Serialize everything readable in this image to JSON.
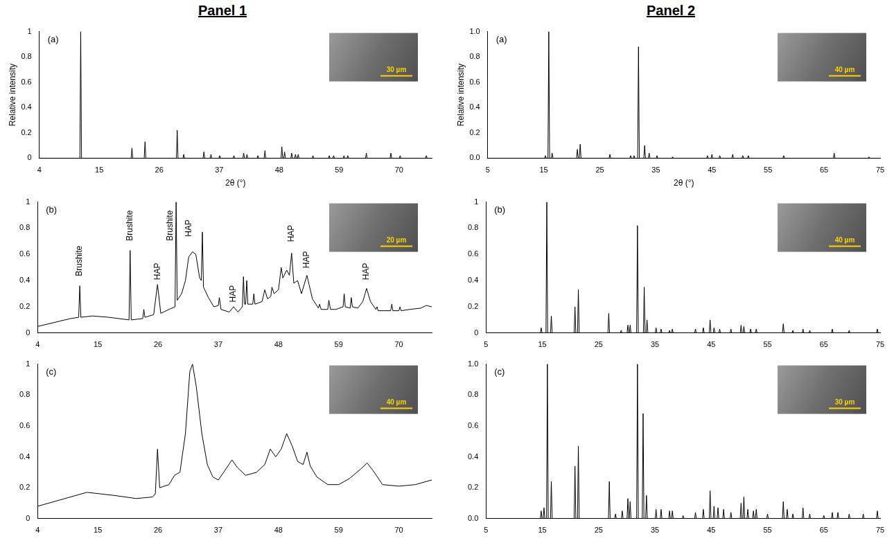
{
  "panel_titles": [
    "Panel 1",
    "Panel 2"
  ],
  "chart_data": [
    {
      "type": "line",
      "label": "(a)",
      "x_label": "2θ (°)",
      "y_label": "Relative intensity",
      "color": "#000000",
      "grid": false,
      "image_scale_bar": "30 µm",
      "xlim": [
        4,
        76
      ],
      "xticks": [
        4,
        15,
        26,
        37,
        48,
        59,
        70
      ],
      "ylim": [
        0,
        1
      ],
      "yticks": [
        0,
        0.2,
        0.4,
        0.6,
        0.8,
        1
      ],
      "x": [
        4,
        11.45,
        11.6,
        11.75,
        20.85,
        21,
        21.15,
        23.25,
        23.4,
        23.55,
        29.15,
        29.3,
        29.45,
        30.35,
        30.5,
        30.65,
        34.05,
        34.2,
        34.35,
        35.35,
        35.5,
        35.65,
        36.95,
        37.1,
        37.25,
        39.55,
        39.7,
        39.85,
        41.35,
        41.5,
        41.65,
        41.95,
        42.1,
        42.25,
        43.95,
        44.1,
        44.25,
        45.25,
        45.4,
        45.55,
        48.35,
        48.5,
        48.65,
        48.85,
        49,
        49.15,
        50.15,
        50.3,
        50.45,
        50.85,
        51,
        51.15,
        51.35,
        51.5,
        51.65,
        54.05,
        54.2,
        54.35,
        57.05,
        57.2,
        57.35,
        57.85,
        58,
        58.15,
        59.75,
        59.9,
        60.05,
        60.45,
        60.6,
        60.75,
        63.85,
        64,
        64.15,
        68.35,
        68.5,
        68.65,
        70.05,
        70.2,
        70.35,
        74.85,
        75,
        75.15,
        76
      ],
      "values": [
        0,
        0,
        1,
        0,
        0,
        0.08,
        0,
        0,
        0.13,
        0,
        0,
        0.22,
        0,
        0,
        0.03,
        0,
        0,
        0.05,
        0,
        0,
        0.03,
        0,
        0,
        0.02,
        0,
        0,
        0.02,
        0,
        0,
        0.04,
        0,
        0,
        0.03,
        0,
        0,
        0.02,
        0,
        0,
        0.06,
        0,
        0,
        0.09,
        0,
        0,
        0.05,
        0,
        0,
        0.04,
        0,
        0,
        0.03,
        0,
        0,
        0.03,
        0,
        0,
        0.02,
        0,
        0,
        0.02,
        0,
        0,
        0.02,
        0,
        0,
        0.02,
        0,
        0,
        0.02,
        0,
        0,
        0.04,
        0,
        0,
        0.04,
        0,
        0,
        0.02,
        0,
        0,
        0.02,
        0,
        0
      ]
    },
    {
      "type": "line",
      "label": "(b)",
      "color": "#000000",
      "grid": false,
      "image_scale_bar": "20 µm",
      "xlim": [
        4,
        76
      ],
      "xticks": [
        4,
        15,
        26,
        37,
        48,
        59,
        70
      ],
      "ylim": [
        0,
        1
      ],
      "yticks": [
        0,
        0.2,
        0.4,
        0.6,
        0.8,
        1
      ],
      "annotations": [
        {
          "text": "Brushite",
          "x": 11.7,
          "y": 0.55
        },
        {
          "text": "Brushite",
          "x": 20.9,
          "y": 0.82
        },
        {
          "text": "HAP",
          "x": 25.9,
          "y": 0.47
        },
        {
          "text": "Brushite",
          "x": 28.2,
          "y": 0.82
        },
        {
          "text": "HAP",
          "x": 31.6,
          "y": 0.8
        },
        {
          "text": "HAP",
          "x": 39.8,
          "y": 0.3
        },
        {
          "text": "HAP",
          "x": 50.4,
          "y": 0.76
        },
        {
          "text": "HAP",
          "x": 53.2,
          "y": 0.56
        },
        {
          "text": "HAP",
          "x": 64.1,
          "y": 0.47
        }
      ],
      "x": [
        4,
        6,
        8,
        10,
        11.5,
        11.7,
        11.9,
        14,
        17,
        20.7,
        20.9,
        21.1,
        23.2,
        23.4,
        23.6,
        25.2,
        25.9,
        26.5,
        28,
        29.1,
        29.3,
        29.5,
        30.3,
        31,
        31.6,
        32.3,
        32.9,
        33.6,
        33.9,
        34.1,
        34.3,
        35.2,
        36.2,
        37,
        37.2,
        37.5,
        39,
        39.8,
        40.6,
        41.4,
        41.6,
        41.8,
        42,
        42.2,
        42.4,
        43.3,
        43.5,
        43.7,
        45,
        45.5,
        46,
        46.6,
        46.8,
        47.2,
        48,
        48.5,
        48.8,
        49.5,
        50,
        50.4,
        50.8,
        51.5,
        52.2,
        53.2,
        54.2,
        55.3,
        55.5,
        55.8,
        57,
        57.2,
        57.5,
        58.5,
        59.8,
        60,
        60.2,
        61.1,
        61.3,
        61.5,
        62.5,
        63.4,
        64.1,
        64.8,
        65.8,
        66,
        66.2,
        68.5,
        68.7,
        68.9,
        70,
        70.2,
        70.4,
        72,
        74,
        75,
        76
      ],
      "values": [
        0.05,
        0.07,
        0.09,
        0.11,
        0.12,
        0.36,
        0.12,
        0.13,
        0.12,
        0.1,
        0.63,
        0.1,
        0.11,
        0.18,
        0.12,
        0.14,
        0.37,
        0.15,
        0.18,
        0.2,
        1,
        0.25,
        0.3,
        0.4,
        0.58,
        0.62,
        0.6,
        0.42,
        0.4,
        0.77,
        0.35,
        0.27,
        0.2,
        0.21,
        0.27,
        0.18,
        0.16,
        0.2,
        0.16,
        0.2,
        0.43,
        0.22,
        0.22,
        0.4,
        0.22,
        0.22,
        0.3,
        0.22,
        0.24,
        0.33,
        0.26,
        0.28,
        0.35,
        0.3,
        0.33,
        0.5,
        0.42,
        0.48,
        0.44,
        0.61,
        0.38,
        0.4,
        0.3,
        0.44,
        0.26,
        0.19,
        0.22,
        0.18,
        0.18,
        0.25,
        0.18,
        0.18,
        0.2,
        0.3,
        0.2,
        0.19,
        0.27,
        0.2,
        0.19,
        0.24,
        0.34,
        0.24,
        0.18,
        0.2,
        0.17,
        0.17,
        0.22,
        0.17,
        0.17,
        0.2,
        0.17,
        0.18,
        0.19,
        0.21,
        0.2
      ]
    },
    {
      "type": "line",
      "label": "(c)",
      "color": "#000000",
      "grid": false,
      "image_scale_bar": "40 µm",
      "xlim": [
        4,
        76
      ],
      "xticks": [
        4,
        15,
        26,
        37,
        48,
        59,
        70
      ],
      "ylim": [
        0,
        1
      ],
      "yticks": [
        0,
        0.2,
        0.4,
        0.6,
        0.8,
        1
      ],
      "x": [
        4,
        8,
        13,
        18,
        22,
        25,
        25.5,
        25.9,
        26.3,
        28,
        29,
        30,
        31,
        31.8,
        32.3,
        33,
        34,
        35,
        36,
        37,
        38,
        39.5,
        40.5,
        42,
        44,
        45.5,
        46.5,
        47.5,
        48.5,
        49.5,
        50.5,
        51.5,
        52.5,
        53.2,
        53.8,
        55,
        57,
        59,
        61,
        63,
        64.2,
        65.5,
        67,
        70,
        73,
        76
      ],
      "values": [
        0.08,
        0.12,
        0.17,
        0.15,
        0.13,
        0.14,
        0.16,
        0.45,
        0.2,
        0.22,
        0.28,
        0.3,
        0.55,
        0.95,
        1,
        0.85,
        0.55,
        0.35,
        0.27,
        0.25,
        0.3,
        0.38,
        0.33,
        0.28,
        0.3,
        0.35,
        0.45,
        0.4,
        0.45,
        0.55,
        0.47,
        0.37,
        0.35,
        0.43,
        0.34,
        0.27,
        0.22,
        0.22,
        0.26,
        0.32,
        0.36,
        0.3,
        0.22,
        0.21,
        0.22,
        0.25
      ]
    },
    {
      "type": "line",
      "label": "(a)",
      "x_label": "2θ (°)",
      "y_label": "Relative intensity",
      "color": "#000000",
      "grid": false,
      "image_scale_bar": "40 µm",
      "xlim": [
        5,
        75
      ],
      "xticks": [
        5,
        15,
        25,
        35,
        45,
        55,
        65,
        75
      ],
      "ylim": [
        0,
        1
      ],
      "yticks": [
        {
          "value": 0,
          "label": "0.0"
        },
        0.2,
        0.4,
        0.6,
        0.8,
        {
          "value": 1,
          "label": "1.0"
        }
      ],
      "x": [
        5,
        15.15,
        15.3,
        15.45,
        15.75,
        15.9,
        16.05,
        16.35,
        16.5,
        16.65,
        20.85,
        21,
        21.15,
        21.35,
        21.5,
        21.65,
        26.65,
        26.8,
        26.95,
        30.35,
        30.5,
        30.65,
        30.95,
        31.1,
        31.25,
        31.75,
        31.9,
        32.05,
        32.85,
        33,
        33.15,
        33.65,
        33.8,
        33.95,
        35.05,
        35.2,
        35.35,
        37.85,
        38,
        38.15,
        44.05,
        44.2,
        44.35,
        44.85,
        45,
        45.15,
        46.25,
        46.4,
        46.55,
        48.55,
        48.7,
        48.85,
        50.35,
        50.5,
        50.65,
        51.35,
        51.5,
        51.65,
        57.65,
        57.8,
        57.95,
        66.65,
        66.8,
        66.95,
        72.85,
        73,
        73.15,
        75
      ],
      "values": [
        0,
        0,
        0.02,
        0,
        0,
        1,
        0,
        0,
        0.04,
        0,
        0,
        0.07,
        0,
        0,
        0.11,
        0,
        0,
        0.03,
        0,
        0,
        0.02,
        0,
        0,
        0.02,
        0,
        0,
        0.88,
        0,
        0,
        0.1,
        0,
        0,
        0.04,
        0,
        0,
        0.02,
        0,
        0,
        0.01,
        0,
        0,
        0.02,
        0,
        0,
        0.03,
        0,
        0,
        0.02,
        0,
        0,
        0.03,
        0,
        0,
        0.02,
        0,
        0,
        0.02,
        0,
        0,
        0.02,
        0,
        0,
        0.04,
        0,
        0,
        0.01,
        0,
        0
      ]
    },
    {
      "type": "line",
      "label": "(b)",
      "color": "#000000",
      "grid": false,
      "image_scale_bar": "40 µm",
      "xlim": [
        5,
        75
      ],
      "xticks": [
        5,
        15,
        25,
        35,
        45,
        55,
        65,
        75
      ],
      "ylim": [
        0,
        1
      ],
      "yticks": [
        0,
        0.2,
        0.4,
        0.6,
        0.8,
        1
      ],
      "x": [
        5,
        14.65,
        14.8,
        14.95,
        15.65,
        15.8,
        15.95,
        16.45,
        16.6,
        16.75,
        20.65,
        20.8,
        20.95,
        21.25,
        21.4,
        21.55,
        26.65,
        26.8,
        26.95,
        28.85,
        29,
        29.15,
        30.05,
        30.2,
        30.35,
        30.45,
        30.6,
        30.75,
        31.75,
        31.9,
        32.05,
        32.95,
        33.1,
        33.25,
        33.45,
        33.6,
        33.75,
        35.05,
        35.2,
        35.35,
        35.95,
        36.1,
        36.25,
        37.45,
        37.6,
        37.75,
        37.95,
        38.1,
        38.25,
        42.05,
        42.2,
        42.35,
        43.45,
        43.6,
        43.75,
        44.65,
        44.8,
        44.95,
        45.35,
        45.5,
        45.65,
        46.35,
        46.5,
        46.65,
        48.35,
        48.5,
        48.65,
        50.15,
        50.3,
        50.45,
        50.65,
        50.8,
        50.95,
        51.85,
        52,
        52.15,
        52.85,
        53,
        53.15,
        57.65,
        57.8,
        57.95,
        59.35,
        59.5,
        59.65,
        61.15,
        61.3,
        61.45,
        62.35,
        62.5,
        62.65,
        66.35,
        66.5,
        66.65,
        69.35,
        69.5,
        69.65,
        74.35,
        74.5,
        74.65,
        75
      ],
      "values": [
        0,
        0,
        0.04,
        0,
        0,
        1,
        0,
        0,
        0.13,
        0,
        0,
        0.2,
        0,
        0,
        0.33,
        0,
        0,
        0.15,
        0,
        0,
        0.02,
        0,
        0,
        0.06,
        0,
        0,
        0.06,
        0,
        0,
        0.82,
        0,
        0,
        0.35,
        0,
        0,
        0.1,
        0,
        0,
        0.04,
        0,
        0,
        0.03,
        0,
        0,
        0.02,
        0,
        0,
        0.03,
        0,
        0,
        0.03,
        0,
        0,
        0.04,
        0,
        0,
        0.1,
        0,
        0,
        0.04,
        0,
        0,
        0.03,
        0,
        0,
        0.03,
        0,
        0,
        0.06,
        0,
        0,
        0.05,
        0,
        0,
        0.03,
        0,
        0,
        0.03,
        0,
        0,
        0.07,
        0,
        0,
        0.02,
        0,
        0,
        0.03,
        0,
        0,
        0.02,
        0,
        0,
        0.03,
        0,
        0,
        0.02,
        0,
        0,
        0.03,
        0,
        0
      ]
    },
    {
      "type": "line",
      "label": "(c)",
      "color": "#000000",
      "grid": false,
      "image_scale_bar": "30 µm",
      "xlim": [
        5,
        75
      ],
      "xticks": [
        5,
        15,
        25,
        35,
        45,
        55,
        65,
        75
      ],
      "ylim": [
        0,
        1
      ],
      "yticks": [
        {
          "value": 0,
          "label": "0.0"
        },
        0.2,
        0.4,
        0.6,
        0.8,
        {
          "value": 1,
          "label": "1.0"
        }
      ],
      "x": [
        5,
        14.65,
        14.8,
        14.95,
        15.15,
        15.3,
        15.45,
        15.75,
        15.9,
        16.05,
        16.45,
        16.6,
        16.75,
        20.65,
        20.8,
        20.95,
        21.25,
        21.4,
        21.55,
        26.75,
        26.9,
        27.05,
        27.85,
        28,
        28.15,
        29.05,
        29.2,
        29.35,
        30.05,
        30.2,
        30.35,
        30.45,
        30.6,
        30.75,
        31.75,
        31.9,
        32.05,
        32.75,
        32.9,
        33.05,
        33.35,
        33.5,
        33.65,
        35.05,
        35.2,
        35.35,
        35.95,
        36.1,
        36.25,
        37.45,
        37.6,
        37.75,
        37.95,
        38.1,
        38.25,
        39.85,
        40,
        40.15,
        42.05,
        42.2,
        42.35,
        43.45,
        43.6,
        43.75,
        44.65,
        44.8,
        44.95,
        45.35,
        45.5,
        45.65,
        46.05,
        46.2,
        46.35,
        47.05,
        47.2,
        47.35,
        48.35,
        48.5,
        48.65,
        50.15,
        50.3,
        50.45,
        50.65,
        50.8,
        50.95,
        51.35,
        51.5,
        51.65,
        52.35,
        52.5,
        52.65,
        52.85,
        53,
        53.15,
        54.85,
        55,
        55.15,
        57.65,
        57.8,
        57.95,
        58.35,
        58.5,
        58.65,
        59.35,
        59.5,
        59.65,
        61.15,
        61.3,
        61.45,
        62.35,
        62.5,
        62.65,
        64.85,
        65,
        65.15,
        66.35,
        66.5,
        66.65,
        67.35,
        67.5,
        67.65,
        69.35,
        69.5,
        69.65,
        71.85,
        72,
        72.15,
        74.35,
        74.5,
        74.65,
        75
      ],
      "values": [
        0,
        0,
        0.05,
        0,
        0,
        0.07,
        0,
        0,
        1,
        0,
        0,
        0.24,
        0,
        0,
        0.34,
        0,
        0,
        0.47,
        0,
        0,
        0.24,
        0,
        0,
        0.03,
        0,
        0,
        0.05,
        0,
        0,
        0.13,
        0,
        0,
        0.11,
        0,
        0,
        1,
        0,
        0,
        0.68,
        0,
        0,
        0.15,
        0,
        0,
        0.06,
        0,
        0,
        0.06,
        0,
        0,
        0.05,
        0,
        0,
        0.05,
        0,
        0,
        0.02,
        0,
        0,
        0.04,
        0,
        0,
        0.06,
        0,
        0,
        0.18,
        0,
        0,
        0.08,
        0,
        0,
        0.07,
        0,
        0,
        0.06,
        0,
        0,
        0.04,
        0,
        0,
        0.1,
        0,
        0,
        0.14,
        0,
        0,
        0.06,
        0,
        0,
        0.05,
        0,
        0,
        0.06,
        0,
        0,
        0.03,
        0,
        0,
        0.11,
        0,
        0,
        0.06,
        0,
        0,
        0.03,
        0,
        0,
        0.07,
        0,
        0,
        0.03,
        0,
        0,
        0.02,
        0,
        0,
        0.04,
        0,
        0,
        0.04,
        0,
        0,
        0.03,
        0,
        0,
        0.03,
        0,
        0,
        0.05,
        0,
        0
      ]
    }
  ]
}
